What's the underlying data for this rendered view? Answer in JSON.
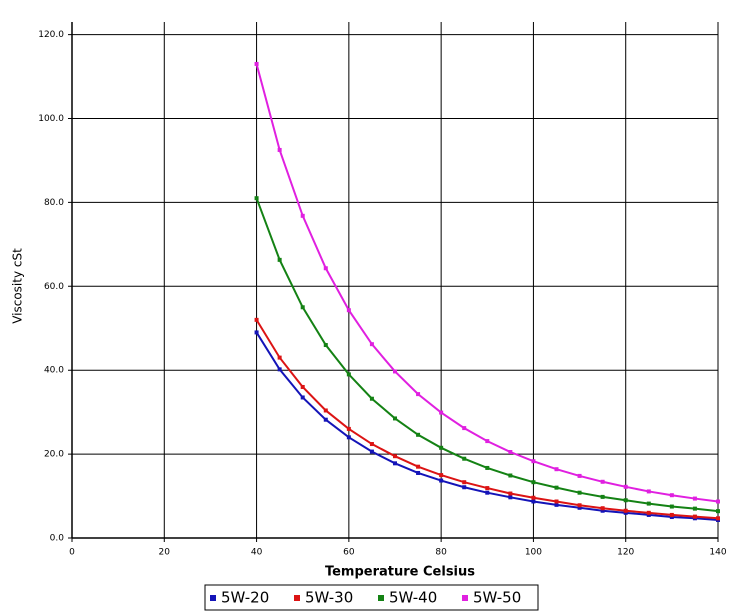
{
  "chart_data": {
    "type": "line",
    "x_label": "Temperature Celsius",
    "y_label": "Viscosity cSt",
    "xlim": [
      0,
      140
    ],
    "ylim": [
      0,
      123
    ],
    "xticks": [
      0,
      20,
      40,
      60,
      80,
      100,
      120,
      140
    ],
    "yticks": [
      {
        "value": 0,
        "label": "0.0"
      },
      {
        "value": 20,
        "label": "20.0"
      },
      {
        "value": 40,
        "label": "40.0"
      },
      {
        "value": 60,
        "label": "60.0"
      },
      {
        "value": 80,
        "label": "80.0"
      },
      {
        "value": 100,
        "label": "100.0"
      },
      {
        "value": 120,
        "label": "120.0"
      }
    ],
    "grid": true,
    "legend": "bottom",
    "x": [
      40,
      45,
      50,
      55,
      60,
      65,
      70,
      75,
      80,
      85,
      90,
      95,
      100,
      105,
      110,
      115,
      120,
      125,
      130,
      135,
      140
    ],
    "series": [
      {
        "name": "5W-20",
        "color": "#1414b8",
        "values": [
          49,
          40.2,
          33.5,
          28.2,
          24,
          20.6,
          17.8,
          15.5,
          13.7,
          12.1,
          10.8,
          9.7,
          8.7,
          7.9,
          7.2,
          6.5,
          6,
          5.5,
          5,
          4.7,
          4.3
        ]
      },
      {
        "name": "5W-30",
        "color": "#dc1414",
        "values": [
          52,
          43,
          36,
          30.4,
          26,
          22.4,
          19.5,
          17,
          15,
          13.3,
          11.9,
          10.6,
          9.6,
          8.7,
          7.8,
          7.1,
          6.5,
          6,
          5.5,
          5.1,
          4.7
        ]
      },
      {
        "name": "5W-40",
        "color": "#148214",
        "values": [
          81,
          66.3,
          55,
          46,
          39,
          33.2,
          28.5,
          24.6,
          21.5,
          18.9,
          16.7,
          14.9,
          13.3,
          12,
          10.8,
          9.8,
          9,
          8.2,
          7.5,
          7,
          6.4
        ]
      },
      {
        "name": "5W-50",
        "color": "#e020e0",
        "values": [
          113,
          92.5,
          76.8,
          64.3,
          54.3,
          46.2,
          39.7,
          34.3,
          29.9,
          26.2,
          23.1,
          20.5,
          18.3,
          16.4,
          14.8,
          13.4,
          12.2,
          11.1,
          10.2,
          9.4,
          8.7
        ]
      }
    ]
  }
}
